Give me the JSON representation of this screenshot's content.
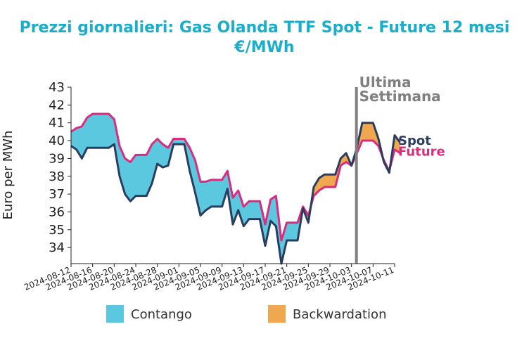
{
  "chart_data": {
    "type": "area",
    "title_line1": "Prezzi giornalieri: Gas Olanda TTF Spot - Future 12 mesi",
    "title_line2": "€/MWh",
    "ylabel": "Euro per MWh",
    "ylim": [
      33.1,
      43
    ],
    "yticks": [
      34,
      35,
      36,
      37,
      38,
      39,
      40,
      41,
      42,
      43
    ],
    "x_start": "2024-08-12",
    "x_end": "2024-10-11",
    "xticks": [
      "2024-08-12",
      "2024-08-16",
      "2024-08-20",
      "2024-08-24",
      "2024-08-28",
      "2024-09-01",
      "2024-09-05",
      "2024-09-09",
      "2024-09-13",
      "2024-09-17",
      "2024-09-21",
      "2024-09-25",
      "2024-09-29",
      "2024-10-03",
      "2024-10-07",
      "2024-10-11"
    ],
    "annotation": {
      "date": "2024-10-03",
      "line1": "Ultima",
      "line2": "Settimana",
      "color": "#808080"
    },
    "series": [
      {
        "name": "Spot",
        "color": "#2b3d5e",
        "points": [
          [
            "2024-08-12",
            39.7
          ],
          [
            "2024-08-13",
            39.5
          ],
          [
            "2024-08-14",
            39.0
          ],
          [
            "2024-08-15",
            39.6
          ],
          [
            "2024-08-16",
            39.6
          ],
          [
            "2024-08-19",
            39.6
          ],
          [
            "2024-08-20",
            39.8
          ],
          [
            "2024-08-21",
            38.0
          ],
          [
            "2024-08-22",
            37.0
          ],
          [
            "2024-08-23",
            36.6
          ],
          [
            "2024-08-24",
            36.9
          ],
          [
            "2024-08-26",
            36.9
          ],
          [
            "2024-08-27",
            37.6
          ],
          [
            "2024-08-28",
            38.7
          ],
          [
            "2024-08-29",
            38.5
          ],
          [
            "2024-08-30",
            38.6
          ],
          [
            "2024-08-31",
            39.8
          ],
          [
            "2024-09-02",
            39.8
          ],
          [
            "2024-09-03",
            38.3
          ],
          [
            "2024-09-04",
            37.1
          ],
          [
            "2024-09-05",
            35.8
          ],
          [
            "2024-09-06",
            36.1
          ],
          [
            "2024-09-07",
            36.3
          ],
          [
            "2024-09-09",
            36.3
          ],
          [
            "2024-09-10",
            37.3
          ],
          [
            "2024-09-11",
            35.3
          ],
          [
            "2024-09-12",
            36.1
          ],
          [
            "2024-09-13",
            35.2
          ],
          [
            "2024-09-14",
            35.6
          ],
          [
            "2024-09-16",
            35.6
          ],
          [
            "2024-09-17",
            34.1
          ],
          [
            "2024-09-18",
            35.5
          ],
          [
            "2024-09-19",
            35.2
          ],
          [
            "2024-09-20",
            33.1
          ],
          [
            "2024-09-21",
            34.4
          ],
          [
            "2024-09-23",
            34.4
          ],
          [
            "2024-09-24",
            36.2
          ],
          [
            "2024-09-25",
            35.4
          ],
          [
            "2024-09-26",
            37.4
          ],
          [
            "2024-09-27",
            37.9
          ],
          [
            "2024-09-28",
            38.1
          ],
          [
            "2024-09-30",
            38.1
          ],
          [
            "2024-10-01",
            39.0
          ],
          [
            "2024-10-02",
            39.3
          ],
          [
            "2024-10-03",
            38.6
          ],
          [
            "2024-10-04",
            39.6
          ],
          [
            "2024-10-05",
            41.0
          ],
          [
            "2024-10-07",
            41.0
          ],
          [
            "2024-10-08",
            40.1
          ],
          [
            "2024-10-09",
            38.8
          ],
          [
            "2024-10-10",
            38.2
          ],
          [
            "2024-10-11",
            40.3
          ],
          [
            "2024-10-12",
            39.9
          ]
        ]
      },
      {
        "name": "Future",
        "color": "#d92c7e",
        "points": [
          [
            "2024-08-12",
            40.5
          ],
          [
            "2024-08-13",
            40.7
          ],
          [
            "2024-08-14",
            40.8
          ],
          [
            "2024-08-15",
            41.3
          ],
          [
            "2024-08-16",
            41.5
          ],
          [
            "2024-08-19",
            41.5
          ],
          [
            "2024-08-20",
            41.2
          ],
          [
            "2024-08-21",
            39.7
          ],
          [
            "2024-08-22",
            39.0
          ],
          [
            "2024-08-23",
            38.8
          ],
          [
            "2024-08-24",
            39.2
          ],
          [
            "2024-08-26",
            39.2
          ],
          [
            "2024-08-27",
            39.8
          ],
          [
            "2024-08-28",
            40.1
          ],
          [
            "2024-08-29",
            39.8
          ],
          [
            "2024-08-30",
            39.6
          ],
          [
            "2024-08-31",
            40.1
          ],
          [
            "2024-09-02",
            40.1
          ],
          [
            "2024-09-03",
            39.6
          ],
          [
            "2024-09-04",
            38.9
          ],
          [
            "2024-09-05",
            37.7
          ],
          [
            "2024-09-06",
            37.7
          ],
          [
            "2024-09-07",
            37.8
          ],
          [
            "2024-09-09",
            37.8
          ],
          [
            "2024-09-10",
            38.3
          ],
          [
            "2024-09-11",
            36.8
          ],
          [
            "2024-09-12",
            37.2
          ],
          [
            "2024-09-13",
            36.3
          ],
          [
            "2024-09-14",
            36.6
          ],
          [
            "2024-09-16",
            36.6
          ],
          [
            "2024-09-17",
            35.3
          ],
          [
            "2024-09-18",
            36.7
          ],
          [
            "2024-09-19",
            36.9
          ],
          [
            "2024-09-20",
            34.4
          ],
          [
            "2024-09-21",
            35.4
          ],
          [
            "2024-09-23",
            35.4
          ],
          [
            "2024-09-24",
            36.3
          ],
          [
            "2024-09-25",
            35.8
          ],
          [
            "2024-09-26",
            36.9
          ],
          [
            "2024-09-27",
            37.2
          ],
          [
            "2024-09-28",
            37.4
          ],
          [
            "2024-09-30",
            37.4
          ],
          [
            "2024-10-01",
            38.6
          ],
          [
            "2024-10-02",
            38.8
          ],
          [
            "2024-10-03",
            38.6
          ],
          [
            "2024-10-04",
            39.3
          ],
          [
            "2024-10-05",
            40.0
          ],
          [
            "2024-10-07",
            40.0
          ],
          [
            "2024-10-08",
            39.7
          ],
          [
            "2024-10-09",
            38.9
          ],
          [
            "2024-10-10",
            38.3
          ],
          [
            "2024-10-11",
            39.5
          ],
          [
            "2024-10-12",
            39.3
          ]
        ]
      }
    ],
    "fills": [
      {
        "name": "Contango",
        "condition": "Future > Spot",
        "color": "#5bc8df"
      },
      {
        "name": "Backwardation",
        "condition": "Spot > Future",
        "color": "#f0a850"
      }
    ],
    "legend_position": "bottom"
  }
}
